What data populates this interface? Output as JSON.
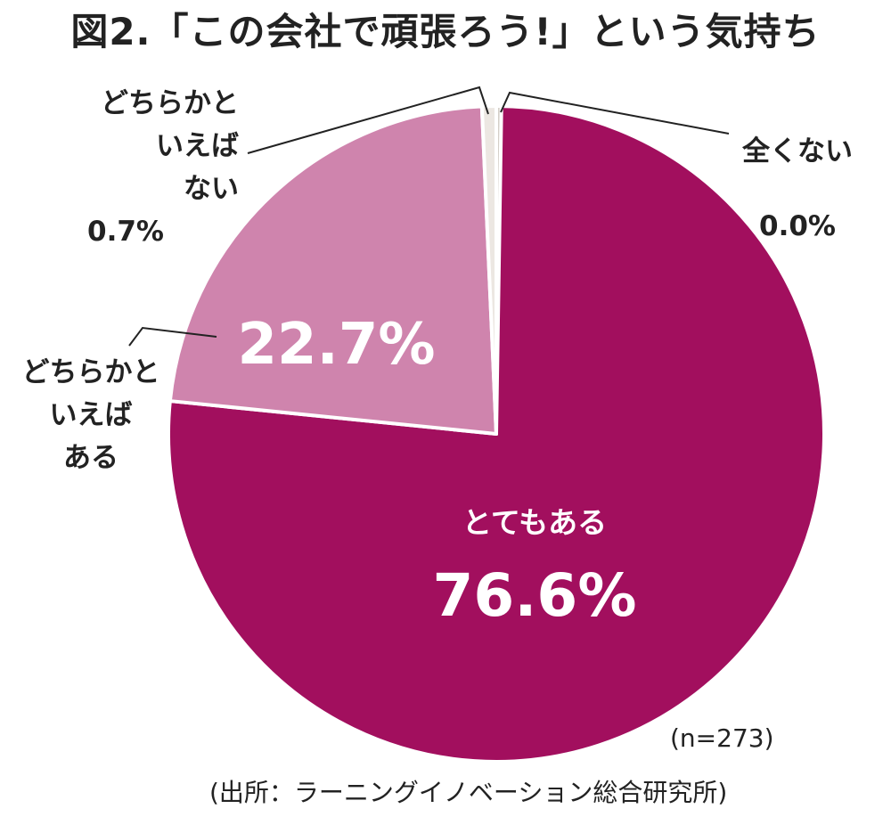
{
  "chart_data": {
    "type": "pie",
    "title": "図2.「この会社で頑張ろう!」という気持ち",
    "categories": [
      "とてもある",
      "どちらかといえばある",
      "どちらかといえばない",
      "全くない"
    ],
    "values": [
      76.6,
      22.7,
      0.7,
      0.0
    ],
    "value_labels": [
      "76.6%",
      "22.7%",
      "0.7%",
      "0.0%"
    ],
    "colors": [
      "#a20f5e",
      "#cf84ad",
      "#ece7e2",
      "#d4cfc8"
    ],
    "start": "top, clockwise",
    "label_lines": {
      "very": [
        "とてもある"
      ],
      "somewhat_yes": [
        "どちらかと",
        "いえば",
        "ある"
      ],
      "somewhat_no": [
        "どちらかと",
        "いえば",
        "ない"
      ],
      "none": [
        "全くない"
      ]
    }
  },
  "note": "(n=273)",
  "source": "(出所：ラーニングイノベーション総合研究所)"
}
